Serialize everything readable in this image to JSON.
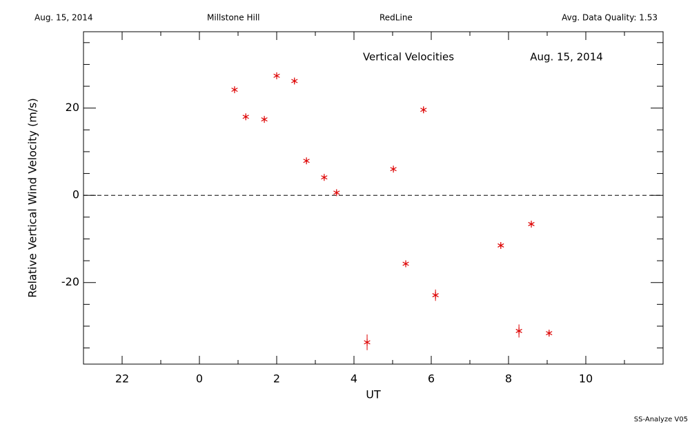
{
  "header": {
    "date": "Aug. 15, 2014",
    "site": "Millstone Hill",
    "line": "RedLine",
    "quality": "Avg. Data Quality: 1.53"
  },
  "footer": "SS-Analyze V05",
  "chart_data": {
    "type": "scatter",
    "title": "Vertical Velocities",
    "subtitle": "Aug. 15, 2014",
    "x_label": "UT",
    "y_label": "Relative Vertical Wind Velocity (m/s)",
    "color": "#dd0000",
    "series": [
      {
        "name": "Vertical Velocities",
        "color": "#dd0000",
        "x": [
          0.91,
          1.2,
          1.68,
          2.0,
          2.46,
          2.77,
          3.23,
          3.55,
          4.34,
          5.02,
          5.34,
          5.8,
          6.11,
          7.8,
          8.27,
          8.59,
          9.05
        ],
        "values": [
          24.2,
          18.0,
          17.4,
          27.4,
          26.2,
          7.9,
          4.1,
          0.6,
          -33.7,
          6.0,
          -15.7,
          19.6,
          -22.9,
          -11.5,
          -31.1,
          -6.6,
          -31.6
        ],
        "errors": [
          0.5,
          0.5,
          0.5,
          0.5,
          0.5,
          0.5,
          0.5,
          0.5,
          1.8,
          0.5,
          0.5,
          0.7,
          1.3,
          0.5,
          1.5,
          0.5,
          0.5
        ]
      }
    ],
    "xlim": [
      -3,
      12
    ],
    "xticks": [
      {
        "value": -2,
        "label": "22"
      },
      0,
      2,
      4,
      6,
      8,
      10
    ],
    "xminor": [
      -1,
      1,
      3,
      5,
      7,
      9,
      11
    ],
    "ylim": [
      -38.7,
      37.5
    ],
    "yticks": [
      -20,
      0,
      20
    ],
    "yminor": [
      -35,
      -30,
      -25,
      -15,
      -10,
      -5,
      5,
      10,
      15,
      25,
      30,
      35
    ],
    "hline": 0
  }
}
